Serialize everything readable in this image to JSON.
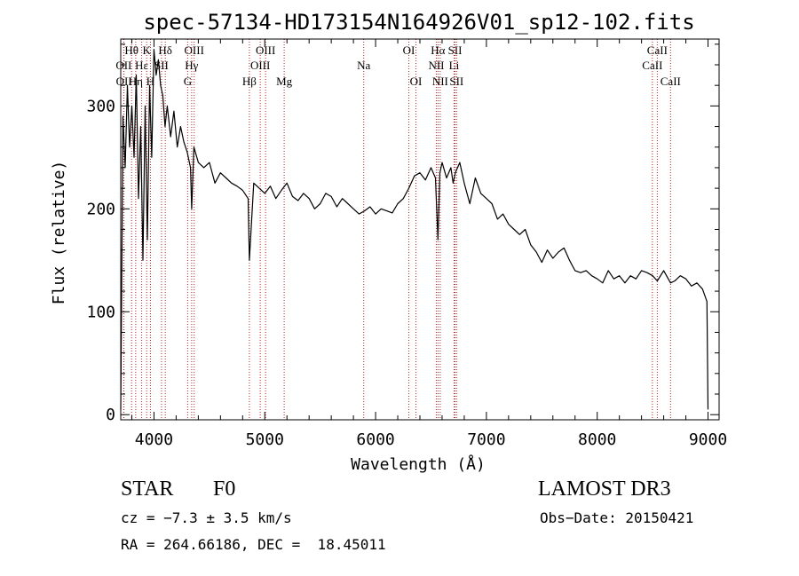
{
  "chart_data": {
    "type": "line",
    "title": "spec-57134-HD173154N164926V01_sp12-102.fits",
    "xlabel": "Wavelength (Å)",
    "ylabel": "Flux (relative)",
    "xlim": [
      3700,
      9100
    ],
    "ylim": [
      -5,
      365
    ],
    "xticks": [
      4000,
      5000,
      6000,
      7000,
      8000,
      9000
    ],
    "yticks": [
      0,
      100,
      200,
      300
    ],
    "grid": false,
    "line_color": "#000000",
    "marker_color": "#b22222",
    "series": [
      {
        "x": [
          3700,
          3720,
          3740,
          3760,
          3780,
          3800,
          3820,
          3840,
          3860,
          3880,
          3900,
          3920,
          3940,
          3960,
          3980,
          4000,
          4020,
          4040,
          4060,
          4080,
          4100,
          4120,
          4150,
          4180,
          4210,
          4240,
          4270,
          4300,
          4330,
          4340,
          4360,
          4400,
          4450,
          4500,
          4550,
          4600,
          4650,
          4700,
          4750,
          4800,
          4850,
          4861,
          4900,
          4950,
          5000,
          5050,
          5100,
          5150,
          5200,
          5250,
          5300,
          5350,
          5400,
          5450,
          5500,
          5550,
          5600,
          5650,
          5700,
          5750,
          5800,
          5850,
          5900,
          5950,
          6000,
          6050,
          6100,
          6150,
          6200,
          6250,
          6300,
          6350,
          6400,
          6450,
          6500,
          6540,
          6563,
          6580,
          6600,
          6640,
          6680,
          6700,
          6720,
          6740,
          6760,
          6800,
          6850,
          6900,
          6950,
          7000,
          7050,
          7100,
          7150,
          7200,
          7250,
          7300,
          7350,
          7400,
          7450,
          7500,
          7550,
          7600,
          7650,
          7700,
          7750,
          7800,
          7850,
          7900,
          7950,
          8000,
          8050,
          8100,
          8150,
          8200,
          8250,
          8300,
          8350,
          8400,
          8450,
          8500,
          8542,
          8600,
          8662,
          8700,
          8750,
          8800,
          8850,
          8900,
          8950,
          8990,
          9000
        ],
        "y": [
          5,
          290,
          240,
          320,
          260,
          300,
          250,
          330,
          210,
          280,
          150,
          300,
          170,
          320,
          250,
          355,
          330,
          345,
          320,
          310,
          280,
          300,
          270,
          295,
          260,
          280,
          265,
          255,
          240,
          200,
          260,
          245,
          240,
          245,
          225,
          235,
          230,
          225,
          222,
          218,
          210,
          150,
          225,
          220,
          215,
          222,
          210,
          218,
          225,
          212,
          208,
          215,
          210,
          200,
          205,
          215,
          212,
          202,
          210,
          205,
          200,
          195,
          198,
          202,
          195,
          200,
          198,
          196,
          205,
          210,
          220,
          232,
          235,
          228,
          240,
          230,
          170,
          235,
          245,
          230,
          240,
          225,
          235,
          240,
          245,
          225,
          205,
          230,
          215,
          210,
          205,
          190,
          195,
          185,
          180,
          175,
          180,
          165,
          158,
          148,
          160,
          152,
          158,
          162,
          150,
          140,
          138,
          140,
          135,
          132,
          128,
          140,
          132,
          135,
          128,
          135,
          132,
          140,
          138,
          135,
          130,
          140,
          128,
          130,
          135,
          132,
          125,
          128,
          122,
          110,
          5
        ]
      }
    ],
    "line_markers": [
      {
        "label": "Hθ",
        "x": 3798,
        "row": 0
      },
      {
        "label": "K",
        "x": 3934,
        "row": 0
      },
      {
        "label": "Hδ",
        "x": 4102,
        "row": 0
      },
      {
        "label": "OIII",
        "x": 4363,
        "row": 0
      },
      {
        "label": "OIII",
        "x": 5007,
        "row": 0
      },
      {
        "label": "OI",
        "x": 6300,
        "row": 0
      },
      {
        "label": "Hα",
        "x": 6563,
        "row": 0
      },
      {
        "label": "SII",
        "x": 6717,
        "row": 0
      },
      {
        "label": "CaII",
        "x": 8542,
        "row": 0
      },
      {
        "label": "OII",
        "x": 3727,
        "row": 1
      },
      {
        "label": "Hε",
        "x": 3889,
        "row": 1
      },
      {
        "label": "SII",
        "x": 4068,
        "row": 1
      },
      {
        "label": "Hγ",
        "x": 4340,
        "row": 1
      },
      {
        "label": "OIII",
        "x": 4959,
        "row": 1
      },
      {
        "label": "Na",
        "x": 5893,
        "row": 1
      },
      {
        "label": "NII",
        "x": 6548,
        "row": 1
      },
      {
        "label": "Li",
        "x": 6708,
        "row": 1
      },
      {
        "label": "CaII",
        "x": 8498,
        "row": 1
      },
      {
        "label": "OII",
        "x": 3729,
        "row": 2
      },
      {
        "label": "Hη",
        "x": 3835,
        "row": 2
      },
      {
        "label": "H",
        "x": 3968,
        "row": 2
      },
      {
        "label": "G",
        "x": 4304,
        "row": 2
      },
      {
        "label": "Hβ",
        "x": 4861,
        "row": 2
      },
      {
        "label": "Mg",
        "x": 5175,
        "row": 2
      },
      {
        "label": "OI",
        "x": 6364,
        "row": 2
      },
      {
        "label": "NII",
        "x": 6583,
        "row": 2
      },
      {
        "label": "SII",
        "x": 6731,
        "row": 2
      },
      {
        "label": "CaII",
        "x": 8662,
        "row": 2
      }
    ]
  },
  "info": {
    "object_class": "STAR",
    "subclass": "F0",
    "survey": "LAMOST DR3",
    "cz": "cz = −7.3 ± 3.5 km/s",
    "obs_date": "Obs−Date: 20150421",
    "coords": "RA = 264.66186, DEC =  18.45011"
  }
}
